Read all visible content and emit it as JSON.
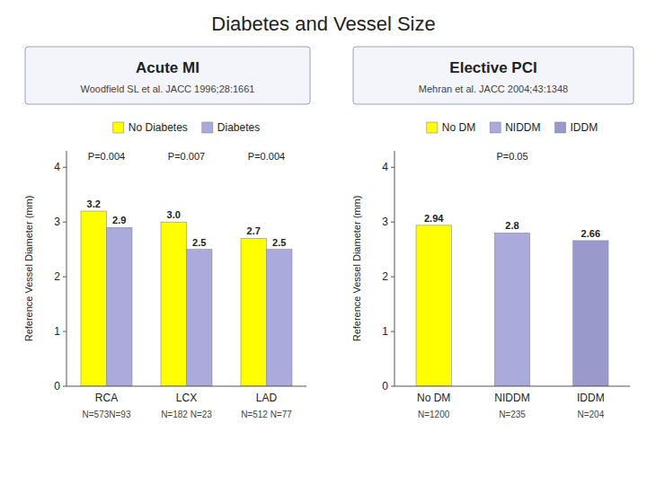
{
  "title": "Diabetes and Vessel Size",
  "chart_data": [
    {
      "type": "bar",
      "title": "Acute MI",
      "subtitle": "Woodfield SL et al. JACC 1996;28:1661",
      "categories": [
        "RCA",
        "LCX",
        "LAD"
      ],
      "series": [
        {
          "name": "No Diabetes",
          "color": "#FFFF00",
          "values": [
            3.2,
            3.0,
            2.7
          ],
          "value_labels": [
            "3.2",
            "3.0",
            "2.7"
          ]
        },
        {
          "name": "Diabetes",
          "color": "#AAAADD",
          "values": [
            2.9,
            2.5,
            2.5
          ]
        }
      ],
      "ylabel": "Reference Vessel Diameter (mm)",
      "ylim": [
        0,
        4.3
      ],
      "yticks": [
        0,
        1,
        2,
        3,
        4
      ],
      "data_labels": true,
      "grid": false,
      "legend": "top",
      "annotations": [
        {
          "text": "P=0.004",
          "category": "RCA"
        },
        {
          "text": "P=0.007",
          "category": "LCX"
        },
        {
          "text": "P=0.004",
          "category": "LAD"
        }
      ],
      "n_labels": [
        "N=573N=93",
        "N=182 N=23",
        "N=512 N=77"
      ]
    },
    {
      "type": "bar",
      "title": "Elective PCI",
      "subtitle": "Mehran et al. JACC 2004;43:1348",
      "categories": [
        "No DM",
        "NIDDM",
        "IDDM"
      ],
      "values": [
        2.94,
        2.8,
        2.66
      ],
      "colors": [
        "#FFFF00",
        "#AAAADD",
        "#9999CC"
      ],
      "ylabel": "Reference Vessel Diameter (mm)",
      "ylim": [
        0,
        4.3
      ],
      "yticks": [
        0,
        1,
        2,
        3,
        4
      ],
      "data_labels": true,
      "grid": false,
      "legend": "top",
      "annotations": [
        {
          "text": "P=0.05",
          "category": "NIDDM"
        }
      ],
      "n_labels": [
        "N=1200",
        "N=235",
        "N=204"
      ]
    }
  ]
}
